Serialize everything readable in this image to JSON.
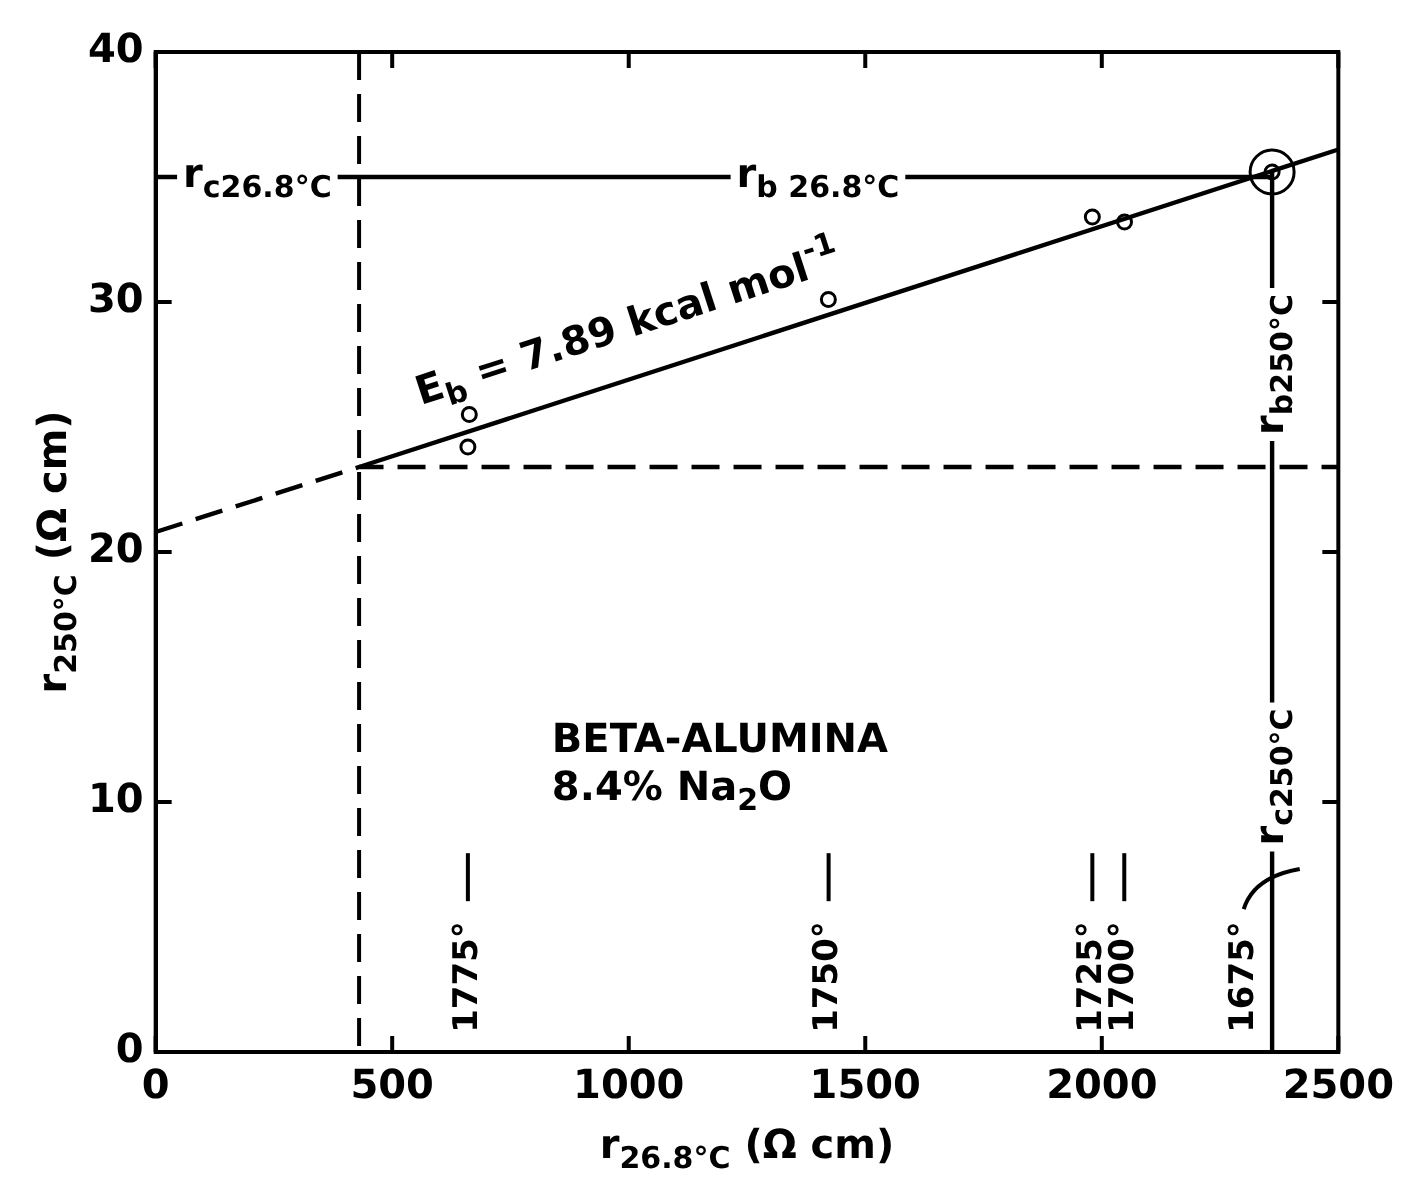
{
  "chart_data": {
    "type": "scatter",
    "xlabel": "r$_{26.8°C}$ (Ω cm)",
    "ylabel": "r$_{250°C}$ (Ω cm)",
    "xlim": [
      0,
      2500
    ],
    "ylim": [
      0,
      40
    ],
    "xticks": [
      0,
      500,
      1000,
      1500,
      2000,
      2500
    ],
    "yticks": [
      0,
      10,
      20,
      30,
      40
    ],
    "grid": false,
    "legend": false,
    "series": [
      {
        "type": "scatter",
        "marker": "circle",
        "color": "#000000",
        "x": [
          663,
          660,
          1422,
          1980,
          2048,
          2360
        ],
        "values": [
          25.5,
          24.2,
          30.1,
          33.4,
          33.2,
          35.2
        ]
      },
      {
        "type": "bubble",
        "color": "#000000",
        "x": [
          2360
        ],
        "values": [
          35.2
        ],
        "sizes": [
          1
        ]
      },
      {
        "type": "line",
        "marker": "none",
        "line_style": "solid",
        "color": "#000000",
        "x": [
          430,
          2500
        ],
        "values": [
          23.4,
          36.1
        ]
      },
      {
        "type": "line",
        "marker": "none",
        "line_style": "dashed",
        "color": "#000000",
        "x": [
          0,
          430,
          2500
        ],
        "values": [
          20.8,
          23.4,
          23.4
        ]
      },
      {
        "type": "line",
        "marker": "none",
        "line_style": "solid",
        "color": "#000000",
        "x": [
          2360,
          2360
        ],
        "values": [
          0,
          35.2
        ]
      },
      {
        "type": "line",
        "marker": "none",
        "line_style": "solid",
        "color": "#000000",
        "x": [
          0,
          2360
        ],
        "values": [
          35,
          35
        ]
      }
    ],
    "ref_lines": [
      {
        "axis": "x",
        "value": 430,
        "line_style": "dashed",
        "color": "#000000"
      }
    ],
    "annotations": [
      {
        "text": "r$_{c26.8°C}$",
        "x": 215,
        "y": 35
      },
      {
        "text": "r$_{b 26.8°C}$",
        "x": 1400,
        "y": 35
      },
      "E$_{b}$ = 7.89 kcal mol$^{-1}$",
      {
        "text": "r$_{b250°C}$",
        "x": 2360,
        "y": 27.5
      },
      {
        "text": "r$_{c250°C}$",
        "x": 2360,
        "y": 11
      },
      "BETA-ALUMINA",
      "8.4% Na$_{2}$O",
      "1775°",
      "1750°",
      "1725°",
      "1700°",
      "1675°"
    ]
  }
}
